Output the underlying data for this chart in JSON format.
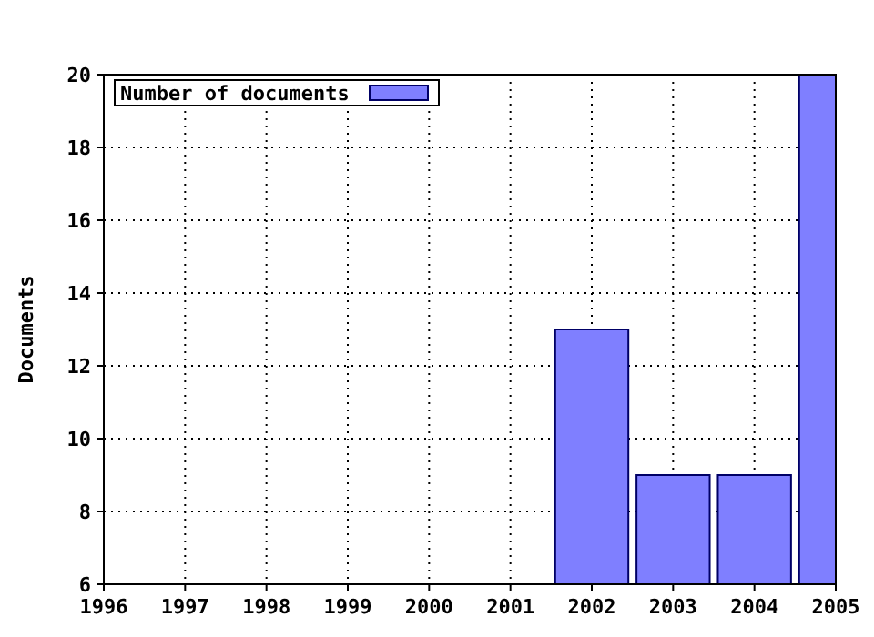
{
  "chart_data": {
    "type": "bar",
    "ylabel": "Documents",
    "x": [
      2002,
      2003,
      2004,
      2005
    ],
    "series": [
      {
        "name": "Number of documents",
        "color": "#7f7fff",
        "values": [
          13,
          9,
          9,
          20
        ]
      }
    ],
    "xlim": [
      1996,
      2005
    ],
    "xticks": [
      1996,
      1997,
      1998,
      1999,
      2000,
      2001,
      2002,
      2003,
      2004,
      2005
    ],
    "ylim": [
      6,
      20
    ],
    "yticks": [
      6,
      8,
      10,
      12,
      14,
      16,
      18,
      20
    ],
    "grid": true,
    "legend": "top left"
  }
}
